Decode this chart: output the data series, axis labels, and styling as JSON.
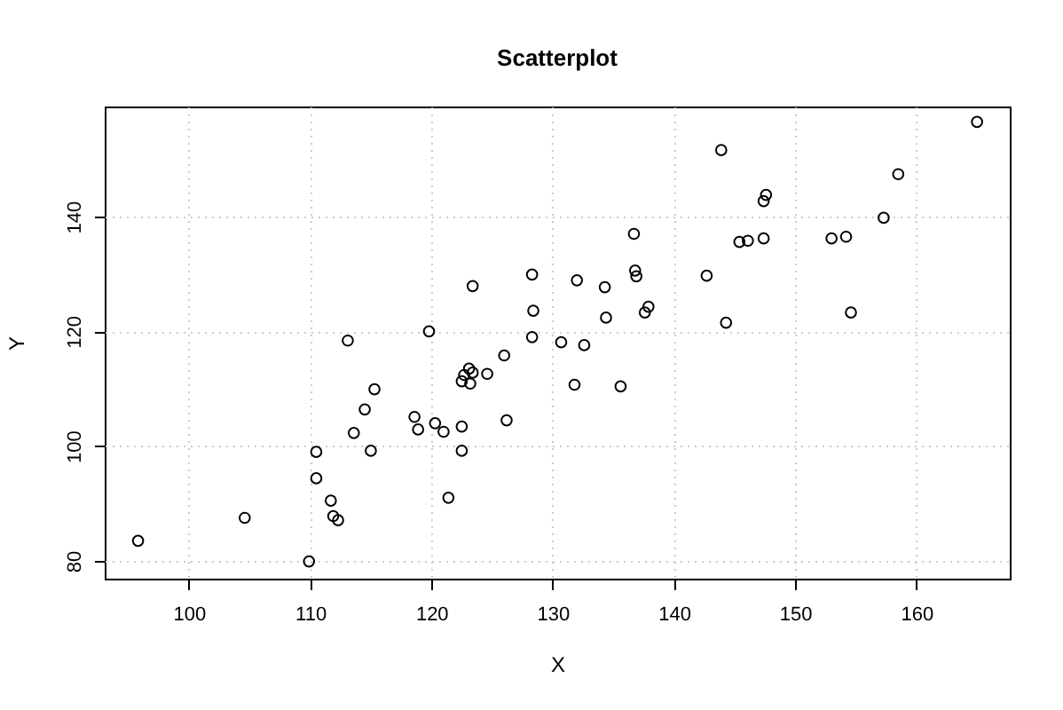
{
  "chart_data": {
    "type": "scatter",
    "title": "Scatterplot",
    "xlabel": "X",
    "ylabel": "Y",
    "x": [
      95.8,
      104.6,
      109.9,
      110.5,
      110.5,
      111.7,
      111.9,
      112.3,
      113.1,
      113.6,
      114.5,
      115.0,
      115.3,
      118.6,
      118.9,
      119.8,
      120.3,
      121.0,
      121.4,
      122.5,
      122.5,
      122.5,
      122.7,
      123.1,
      123.2,
      123.4,
      123.4,
      124.6,
      126.0,
      126.2,
      128.3,
      128.4,
      128.3,
      132.0,
      134.3,
      130.7,
      132.6,
      134.4,
      131.8,
      135.6,
      136.7,
      136.8,
      136.9,
      137.6,
      137.9,
      142.7,
      143.9,
      144.3,
      145.4,
      146.1,
      147.4,
      147.4,
      147.6,
      153.0,
      154.2,
      154.6,
      157.3,
      158.5,
      165.0
    ],
    "series": [
      {
        "color": "#000000",
        "values": [
          83.5,
          87.5,
          79.9,
          99.0,
          94.4,
          90.5,
          87.8,
          87.1,
          118.4,
          102.3,
          106.4,
          99.2,
          109.9,
          105.1,
          102.9,
          120.0,
          104.0,
          102.5,
          91.0,
          103.4,
          99.2,
          111.3,
          112.4,
          113.5,
          110.9,
          112.8,
          127.9,
          112.6,
          115.8,
          104.5,
          129.9,
          123.6,
          119.0,
          128.9,
          127.7,
          118.1,
          117.6,
          122.4,
          110.7,
          110.4,
          137.0,
          130.6,
          129.6,
          123.3,
          124.3,
          129.7,
          151.6,
          121.5,
          135.6,
          135.8,
          136.2,
          142.7,
          143.8,
          136.2,
          136.5,
          123.3,
          139.8,
          147.4,
          156.5
        ]
      }
    ],
    "xlim": [
      93.05,
      167.7
    ],
    "ylim": [
      76.9,
      159.2
    ],
    "xticks": [
      100,
      110,
      120,
      130,
      140,
      150,
      160
    ],
    "yticks": [
      80,
      100,
      120,
      140
    ],
    "grid": true,
    "marker": "circle"
  }
}
